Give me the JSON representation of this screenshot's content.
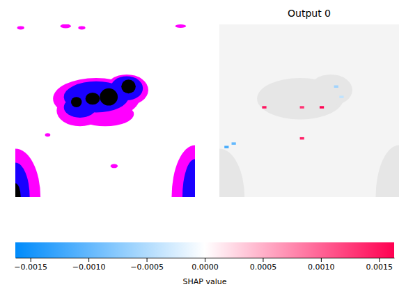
{
  "chart_data": {
    "type": "heatmap",
    "title": "Output 0",
    "tick_labels": false,
    "xlim": [
      0,
      100
    ],
    "ylim": [
      100,
      0
    ],
    "cells": [
      {
        "x": 25,
        "y": 48,
        "value": 0.0015
      },
      {
        "x": 46,
        "y": 48,
        "value": 0.0013
      },
      {
        "x": 57,
        "y": 48,
        "value": 0.0016
      },
      {
        "x": 46,
        "y": 66,
        "value": 0.0014
      },
      {
        "x": 4,
        "y": 71,
        "value": -0.0012
      },
      {
        "x": 8,
        "y": 69,
        "value": -0.001
      },
      {
        "x": 65,
        "y": 36,
        "value": -0.0006
      },
      {
        "x": 68,
        "y": 42,
        "value": -0.0004
      }
    ],
    "colorbar": {
      "label": "SHAP value",
      "range": [
        -0.00163,
        0.00163
      ],
      "ticks": [
        {
          "value": -0.0015,
          "label": "−0.0015"
        },
        {
          "value": -0.001,
          "label": "−0.0010"
        },
        {
          "value": -0.0005,
          "label": "−0.0005"
        },
        {
          "value": 0,
          "label": "0.0000"
        },
        {
          "value": 0.0005,
          "label": "0.0005"
        },
        {
          "value": 0.001,
          "label": "0.0010"
        },
        {
          "value": 0.0015,
          "label": "0.0015"
        }
      ]
    }
  }
}
